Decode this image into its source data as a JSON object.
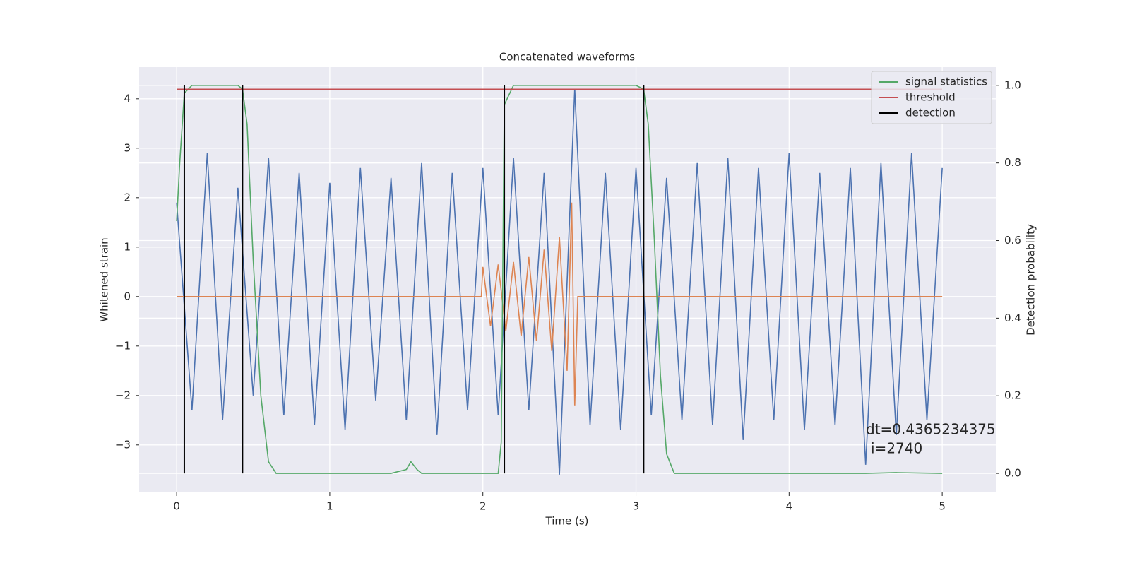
{
  "chart_data": {
    "type": "line",
    "title": "Concatenated waveforms",
    "x_label": "Time (s)",
    "y_label": "Whitened strain",
    "y2_label": "Detection probability",
    "xlim": [
      -0.245,
      5.35
    ],
    "ylim": [
      -3.96,
      4.64
    ],
    "y2lim": [
      -0.049,
      1.047
    ],
    "xticks": [
      0,
      1,
      2,
      3,
      4,
      5
    ],
    "yticks": [
      {
        "value": -3,
        "label": "−3"
      },
      {
        "value": -2,
        "label": "−2"
      },
      {
        "value": -1,
        "label": "−1"
      },
      0,
      1,
      2,
      3,
      4
    ],
    "y2ticks": [
      {
        "value": 0,
        "label": "0.0"
      },
      0.2,
      0.4,
      0.6,
      0.8,
      {
        "value": 1,
        "label": "1.0"
      }
    ],
    "grid": true,
    "legend": "upper right",
    "series": [
      {
        "color": "#4c72b0",
        "x": [
          0,
          0.1,
          0.2,
          0.3,
          0.4,
          0.5,
          0.6,
          0.7,
          0.8,
          0.9,
          1.0,
          1.1,
          1.2,
          1.3,
          1.4,
          1.5,
          1.6,
          1.7,
          1.8,
          1.9,
          2.0,
          2.1,
          2.2,
          2.3,
          2.4,
          2.5,
          2.6,
          2.7,
          2.8,
          2.9,
          3.0,
          3.1,
          3.2,
          3.3,
          3.4,
          3.5,
          3.6,
          3.7,
          3.8,
          3.9,
          4.0,
          4.1,
          4.2,
          4.3,
          4.4,
          4.5,
          4.6,
          4.7,
          4.8,
          4.9,
          5.0
        ],
        "values": [
          1.9,
          -2.3,
          2.9,
          -2.5,
          2.2,
          -2.0,
          2.8,
          -2.4,
          2.5,
          -2.6,
          2.3,
          -2.7,
          2.6,
          -2.1,
          2.4,
          -2.5,
          2.7,
          -2.8,
          2.5,
          -2.3,
          2.6,
          -2.4,
          2.8,
          -2.3,
          2.5,
          -3.6,
          4.2,
          -2.6,
          2.5,
          -2.7,
          2.6,
          -2.4,
          2.4,
          -2.5,
          2.7,
          -2.6,
          2.8,
          -2.9,
          2.6,
          -2.5,
          2.9,
          -2.7,
          2.5,
          -2.6,
          2.6,
          -3.4,
          2.7,
          -2.8,
          2.9,
          -2.5,
          2.6
        ]
      },
      {
        "color": "#dd8452",
        "x": [
          0,
          1.99,
          2.0,
          2.05,
          2.1,
          2.15,
          2.2,
          2.25,
          2.3,
          2.35,
          2.4,
          2.45,
          2.5,
          2.55,
          2.58,
          2.6,
          2.62,
          5.0
        ],
        "values": [
          0,
          0,
          0.6,
          -0.6,
          0.65,
          -0.7,
          0.7,
          -0.8,
          0.8,
          -0.9,
          0.95,
          -1.1,
          1.2,
          -1.5,
          1.9,
          -2.2,
          0,
          0
        ]
      },
      {
        "name": "signal statistics",
        "color": "#55a868",
        "axis": "y2",
        "x": [
          0,
          0.02,
          0.05,
          0.1,
          0.4,
          0.43,
          0.46,
          0.5,
          0.55,
          0.6,
          0.65,
          1.4,
          1.5,
          1.53,
          1.57,
          1.6,
          1.7,
          2.1,
          2.12,
          2.14,
          2.2,
          3.0,
          3.05,
          3.08,
          3.12,
          3.16,
          3.2,
          3.25,
          4.5,
          4.7,
          5.0
        ],
        "values": [
          0.65,
          0.8,
          0.98,
          1.0,
          1.0,
          0.99,
          0.9,
          0.55,
          0.2,
          0.03,
          0.0,
          0.0,
          0.01,
          0.03,
          0.01,
          0.0,
          0.0,
          0.0,
          0.08,
          0.95,
          1.0,
          1.0,
          0.99,
          0.9,
          0.6,
          0.25,
          0.05,
          0.0,
          0.0,
          0.002,
          0.0
        ]
      },
      {
        "name": "threshold",
        "color": "#c44e52",
        "axis": "y2",
        "x": [
          0,
          5
        ],
        "values": [
          0.99,
          0.99
        ]
      }
    ],
    "vlines": {
      "name": "detection",
      "color": "#000000",
      "axis": "y2",
      "x": [
        0.05,
        0.43,
        2.14,
        3.05
      ],
      "ymin": 0,
      "ymax": 1
    },
    "annotations": [
      "dt=0.4365234375",
      "i=2740"
    ]
  }
}
